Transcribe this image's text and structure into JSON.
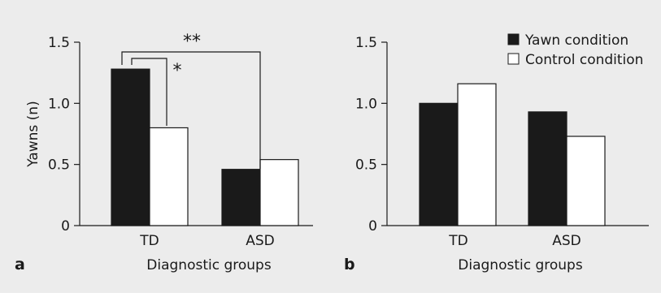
{
  "colors": {
    "background": "#ececec",
    "yawn_fill": "#1a1a1a",
    "control_fill": "#ffffff",
    "line": "#1a1a1a"
  },
  "legend": {
    "items": [
      {
        "label": "Yawn condition",
        "color": "#1a1a1a"
      },
      {
        "label": "Control condition",
        "color": "#ffffff"
      }
    ],
    "placement": "top-right of panel b"
  },
  "chart_data": [
    {
      "panel": "a",
      "type": "bar",
      "categories": [
        "TD",
        "ASD"
      ],
      "series": [
        {
          "name": "Yawn condition",
          "values": [
            1.28,
            0.46
          ]
        },
        {
          "name": "Control condition",
          "values": [
            0.8,
            0.54
          ]
        }
      ],
      "xlabel": "Diagnostic groups",
      "ylabel": "Yawns (n)",
      "ylim": [
        0,
        1.5
      ],
      "yticks": [
        "0",
        "0.5",
        "1.0",
        "1.5"
      ],
      "grid": false,
      "significance": [
        {
          "label": "*",
          "between": "TD Yawn condition vs TD Control condition"
        },
        {
          "label": "**",
          "between": "TD Yawn condition vs ASD Yawn condition"
        }
      ]
    },
    {
      "panel": "b",
      "type": "bar",
      "categories": [
        "TD",
        "ASD"
      ],
      "series": [
        {
          "name": "Yawn condition",
          "values": [
            1.0,
            0.93
          ]
        },
        {
          "name": "Control condition",
          "values": [
            1.16,
            0.73
          ]
        }
      ],
      "xlabel": "Diagnostic groups",
      "ylabel": "",
      "ylim": [
        0,
        1.5
      ],
      "yticks": [
        "0",
        "0.5",
        "1.0",
        "1.5"
      ],
      "grid": false
    }
  ]
}
